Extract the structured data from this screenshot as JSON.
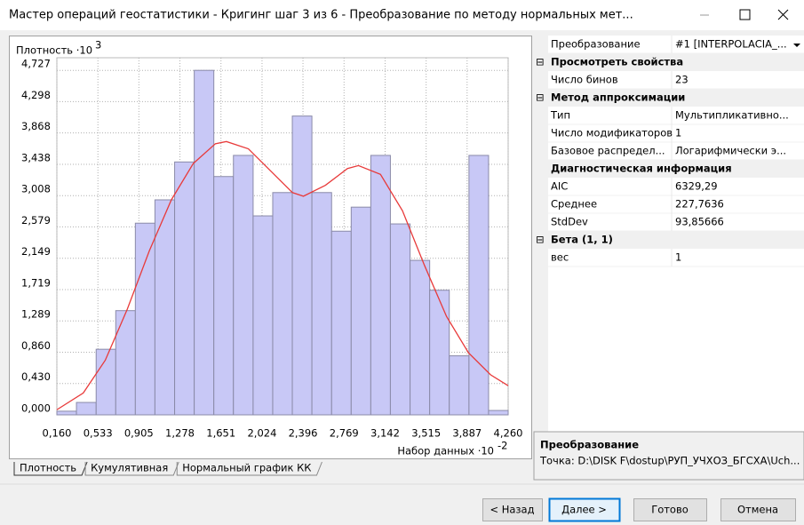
{
  "window": {
    "title": "Мастер операций геостатистики - Кригинг шаг 3 из 6 - Преобразование по методу нормальных мет..."
  },
  "chart_data": {
    "type": "histogram",
    "y_label": "Плотность ·10",
    "y_label_exp": "3",
    "x_label": "Набор данных ·10",
    "x_label_exp": "-2",
    "bins": [
      0.16,
      0.338,
      0.517,
      0.695,
      0.873,
      1.051,
      1.23,
      1.408,
      1.586,
      1.764,
      1.943,
      2.121,
      2.299,
      2.477,
      2.656,
      2.834,
      3.012,
      3.19,
      3.369,
      3.547,
      3.725,
      3.904,
      4.082,
      4.26
    ],
    "values": [
      0.05,
      0.17,
      0.9,
      1.43,
      2.63,
      2.95,
      3.47,
      4.727,
      3.27,
      3.56,
      2.73,
      3.05,
      4.1,
      3.05,
      2.52,
      2.85,
      3.56,
      2.62,
      2.12,
      1.71,
      0.81,
      3.56,
      0.06
    ],
    "color": "#c8c8f6",
    "curve": {
      "color": "#e83a3a",
      "x": [
        0.16,
        0.4,
        0.6,
        0.8,
        1.0,
        1.2,
        1.4,
        1.6,
        1.7,
        1.9,
        2.1,
        2.3,
        2.4,
        2.6,
        2.8,
        2.9,
        3.1,
        3.3,
        3.5,
        3.7,
        3.9,
        4.1,
        4.26
      ],
      "values": [
        0.07,
        0.3,
        0.75,
        1.45,
        2.25,
        2.95,
        3.45,
        3.72,
        3.75,
        3.65,
        3.35,
        3.05,
        3.0,
        3.15,
        3.38,
        3.42,
        3.3,
        2.8,
        2.05,
        1.35,
        0.85,
        0.55,
        0.4
      ]
    },
    "xlim": [
      0.16,
      4.26
    ],
    "ylim": [
      0,
      4.9
    ],
    "xticks": [
      {
        "value": 0.16,
        "label": "0,160"
      },
      {
        "value": 0.533,
        "label": "0,533"
      },
      {
        "value": 0.905,
        "label": "0,905"
      },
      {
        "value": 1.278,
        "label": "1,278"
      },
      {
        "value": 1.651,
        "label": "1,651"
      },
      {
        "value": 2.024,
        "label": "2,024"
      },
      {
        "value": 2.396,
        "label": "2,396"
      },
      {
        "value": 2.769,
        "label": "2,769"
      },
      {
        "value": 3.142,
        "label": "3,142"
      },
      {
        "value": 3.515,
        "label": "3,515"
      },
      {
        "value": 3.887,
        "label": "3,887"
      },
      {
        "value": 4.26,
        "label": "4,260"
      }
    ],
    "yticks": [
      {
        "value": 0,
        "label": "0,000"
      },
      {
        "value": 0.43,
        "label": "0,430"
      },
      {
        "value": 0.86,
        "label": "0,860"
      },
      {
        "value": 1.289,
        "label": "1,289"
      },
      {
        "value": 1.719,
        "label": "1,719"
      },
      {
        "value": 2.149,
        "label": "2,149"
      },
      {
        "value": 2.579,
        "label": "2,579"
      },
      {
        "value": 3.008,
        "label": "3,008"
      },
      {
        "value": 3.438,
        "label": "3,438"
      },
      {
        "value": 3.868,
        "label": "3,868"
      },
      {
        "value": 4.298,
        "label": "4,298"
      },
      {
        "value": 4.727,
        "label": "4,727"
      }
    ],
    "grid": true
  },
  "tabs": [
    "Плотность",
    "Кумулятивная",
    "Нормальный график КК"
  ],
  "properties": [
    {
      "name": "Преобразование",
      "value": "#1 [INTERPOLACIA_..."
    },
    {
      "category": "Просмотреть свойства"
    },
    {
      "name": "Число бинов",
      "value": "23"
    },
    {
      "category": "Метод аппроксимации"
    },
    {
      "name": "Тип",
      "value": "Мультипликативно..."
    },
    {
      "name": "Число модификаторов",
      "value": "1"
    },
    {
      "name": "Базовое распредел...",
      "value": "Логарифмически э..."
    },
    {
      "category": "Диагностическая информация"
    },
    {
      "name": "AIC",
      "value": "6329,29"
    },
    {
      "name": "Среднее",
      "value": "227,7636"
    },
    {
      "name": "StdDev",
      "value": "93,85666"
    },
    {
      "category": "Бета (1, 1)"
    },
    {
      "name": "вес",
      "value": "1"
    }
  ],
  "description": {
    "title": "Преобразование",
    "text": "Точка: D:\\DISK F\\dostup\\РУП_УЧХОЗ_БГСХА\\Uch..."
  },
  "buttons": [
    "< Назад",
    "Далее >",
    "Готово",
    "Отмена"
  ]
}
